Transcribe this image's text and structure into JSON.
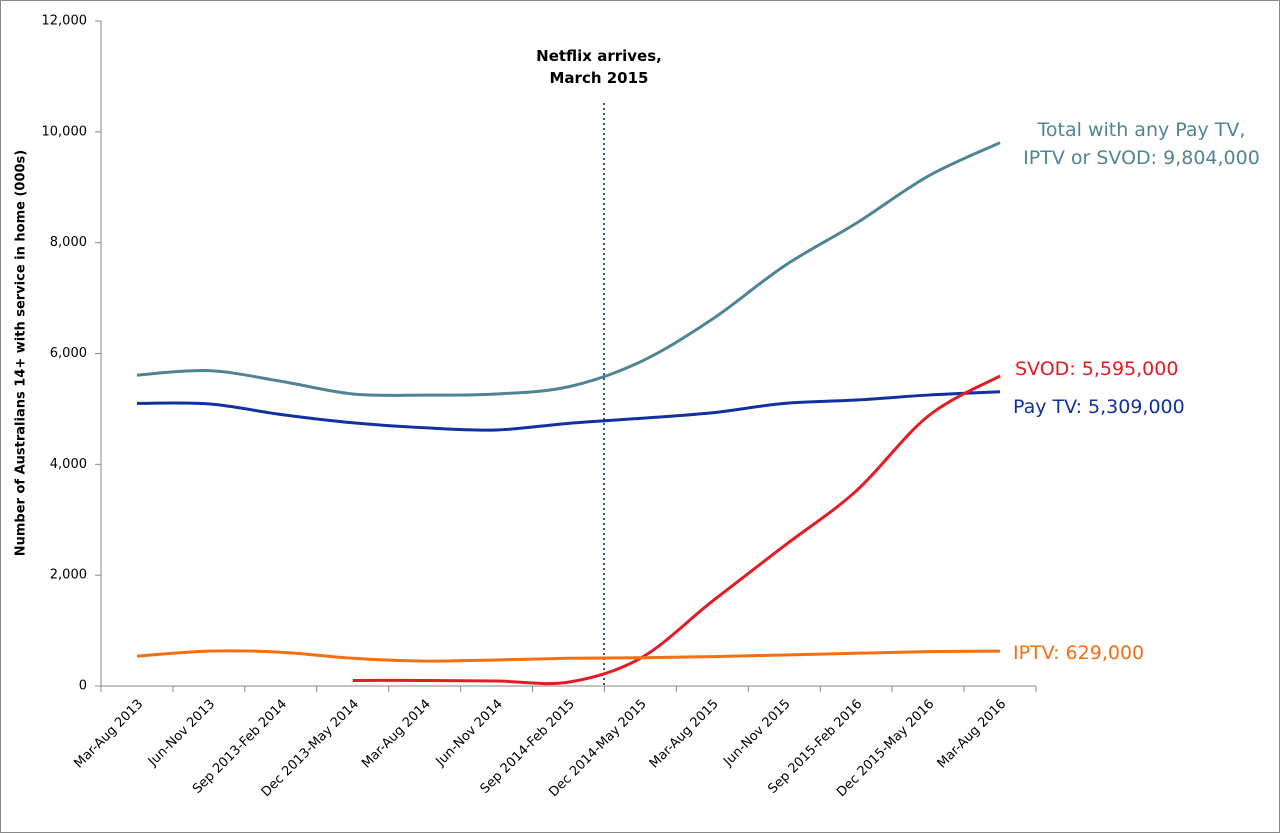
{
  "chart_data": {
    "type": "line",
    "y_label": "Number of Australians 14+ with service in home (000s)",
    "annotation": "Netflix arrives, March 2015",
    "categories": [
      "Mar-Aug 2013",
      "Jun-Nov 2013",
      "Sep 2013-Feb 2014",
      "Dec 2013-May 2014",
      "Mar-Aug 2014",
      "Jun-Nov 2014",
      "Sep 2014-Feb 2015",
      "Dec 2014-May 2015",
      "Mar-Aug 2015",
      "Jun-Nov 2015",
      "Sep 2015-Feb 2016",
      "Dec 2015-May 2016",
      "Mar-Aug 2016"
    ],
    "series": [
      {
        "name": "Total with any Pay TV, IPTV or SVOD: 9,804,000",
        "color": "#4f8593",
        "values": [
          5610,
          5690,
          5500,
          5270,
          5250,
          5270,
          5400,
          5850,
          6620,
          7580,
          8350,
          9200,
          9804
        ]
      },
      {
        "name": "Pay TV: 5,309,000",
        "color": "#1230a0",
        "values": [
          5100,
          5090,
          4900,
          4750,
          4660,
          4620,
          4740,
          4830,
          4930,
          5100,
          5160,
          5250,
          5309
        ]
      },
      {
        "name": "SVOD: 5,595,000",
        "color": "#e31b23",
        "values": [
          null,
          null,
          null,
          100,
          100,
          90,
          70,
          500,
          1530,
          2530,
          3520,
          4870,
          5595
        ]
      },
      {
        "name": "IPTV: 629,000",
        "color": "#f36f13",
        "values": [
          540,
          630,
          610,
          500,
          450,
          470,
          500,
          510,
          530,
          560,
          590,
          620,
          629
        ]
      }
    ],
    "ylim": [
      0,
      12000
    ],
    "yticks": [
      0,
      {
        "value": 2000,
        "label": "2,000"
      },
      {
        "value": 4000,
        "label": "4,000"
      },
      {
        "value": 6000,
        "label": "6,000"
      },
      {
        "value": 8000,
        "label": "8,000"
      },
      {
        "value": 10000,
        "label": "10,000"
      },
      {
        "value": 12000,
        "label": "12,000"
      }
    ]
  }
}
